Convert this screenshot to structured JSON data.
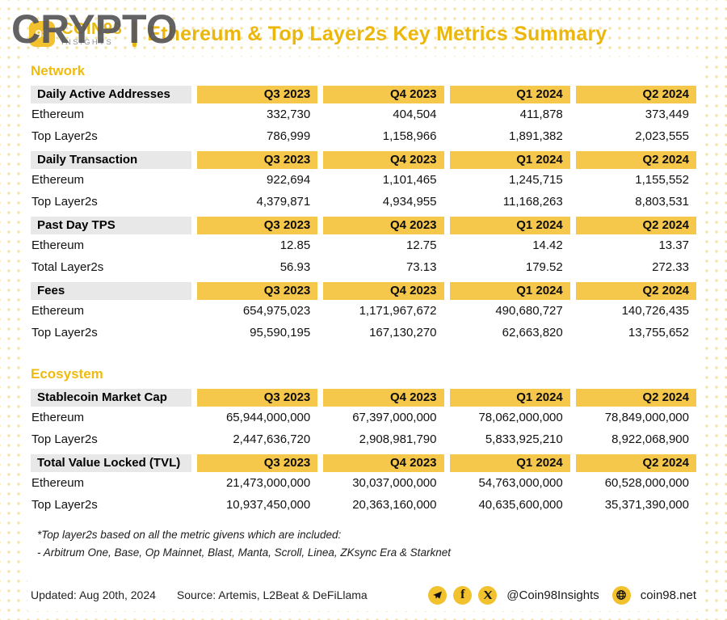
{
  "header": {
    "watermark": "CRYPTO",
    "logo": {
      "badge": "98",
      "brand": "COIN98",
      "subtitle": "INSIGHTS"
    },
    "title": "Ethereum & Top Layer2s Key Metrics Summary"
  },
  "chart_data": {
    "type": "table",
    "title": "Ethereum & Top Layer2s Key Metrics Summary",
    "quarters": [
      "Q3 2023",
      "Q4 2023",
      "Q1 2024",
      "Q2 2024"
    ],
    "sections": [
      {
        "title": "Network",
        "tables": [
          {
            "label": "Daily Active Addresses",
            "rows": [
              {
                "name": "Ethereum",
                "values": [
                  332730,
                  404504,
                  411878,
                  373449
                ]
              },
              {
                "name": "Top Layer2s",
                "values": [
                  786999,
                  1158966,
                  1891382,
                  2023555
                ]
              }
            ]
          },
          {
            "label": "Daily Transaction",
            "rows": [
              {
                "name": "Ethereum",
                "values": [
                  922694,
                  1101465,
                  1245715,
                  1155552
                ]
              },
              {
                "name": "Top Layer2s",
                "values": [
                  4379871,
                  4934955,
                  11168263,
                  8803531
                ]
              }
            ]
          },
          {
            "label": "Past Day TPS",
            "rows": [
              {
                "name": "Ethereum",
                "values": [
                  12.85,
                  12.75,
                  14.42,
                  13.37
                ]
              },
              {
                "name": "Total Layer2s",
                "values": [
                  56.93,
                  73.13,
                  179.52,
                  272.33
                ]
              }
            ]
          },
          {
            "label": "Fees",
            "rows": [
              {
                "name": "Ethereum",
                "values": [
                  654975023,
                  1171967672,
                  490680727,
                  140726435
                ]
              },
              {
                "name": "Top Layer2s",
                "values": [
                  95590195,
                  167130270,
                  62663820,
                  13755652
                ]
              }
            ]
          }
        ]
      },
      {
        "title": "Ecosystem",
        "tables": [
          {
            "label": "Stablecoin Market Cap",
            "rows": [
              {
                "name": "Ethereum",
                "values": [
                  65944000000,
                  67397000000,
                  78062000000,
                  78849000000
                ]
              },
              {
                "name": "Top Layer2s",
                "values": [
                  2447636720,
                  2908981790,
                  5833925210,
                  8922068900
                ]
              }
            ]
          },
          {
            "label": "Total Value Locked (TVL)",
            "rows": [
              {
                "name": "Ethereum",
                "values": [
                  21473000000,
                  30037000000,
                  54763000000,
                  60528000000
                ]
              },
              {
                "name": "Top Layer2s",
                "values": [
                  10937450000,
                  20363160000,
                  40635600000,
                  35371390000
                ]
              }
            ]
          }
        ]
      }
    ]
  },
  "footnote": {
    "line1": "*Top layer2s based on all the metric givens which are included:",
    "line2": "- Arbitrum One, Base, Op Mainnet, Blast, Manta, Scroll, Linea, ZKsync Era & Starknet"
  },
  "footer": {
    "updated": "Updated: Aug 20th, 2024",
    "source": "Source: Artemis, L2Beat & DeFiLlama",
    "handle": "@Coin98Insights",
    "website": "coin98.net"
  },
  "colors": {
    "brand_yellow": "#F5C74B",
    "gold": "#EBB70C",
    "label_gray": "#E8E8E8",
    "watermark_gray": "#58575A",
    "dot": "#F5E4A6"
  }
}
